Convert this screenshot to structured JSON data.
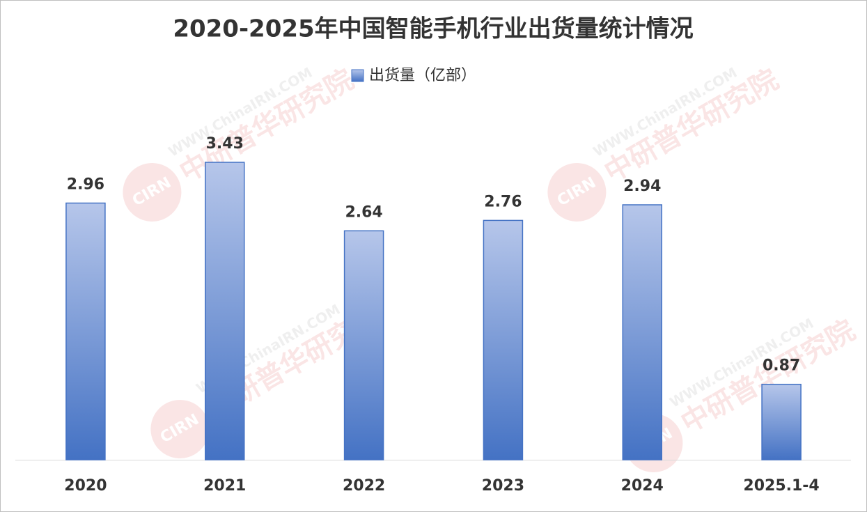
{
  "chart_data": {
    "type": "bar",
    "title": "2020-2025年中国智能手机行业出货量统计情况",
    "categories": [
      "2020",
      "2021",
      "2022",
      "2023",
      "2024",
      "2025.1-4"
    ],
    "series": [
      {
        "name": "出货量（亿部）",
        "color": "#4472c4",
        "values": [
          2.96,
          3.43,
          2.64,
          2.76,
          2.94,
          0.87
        ]
      }
    ],
    "legend": "top",
    "watermark": {
      "site": "WWW.ChinaIRN.COM",
      "org": "中研普华研究院",
      "logo": "CIRN"
    }
  }
}
